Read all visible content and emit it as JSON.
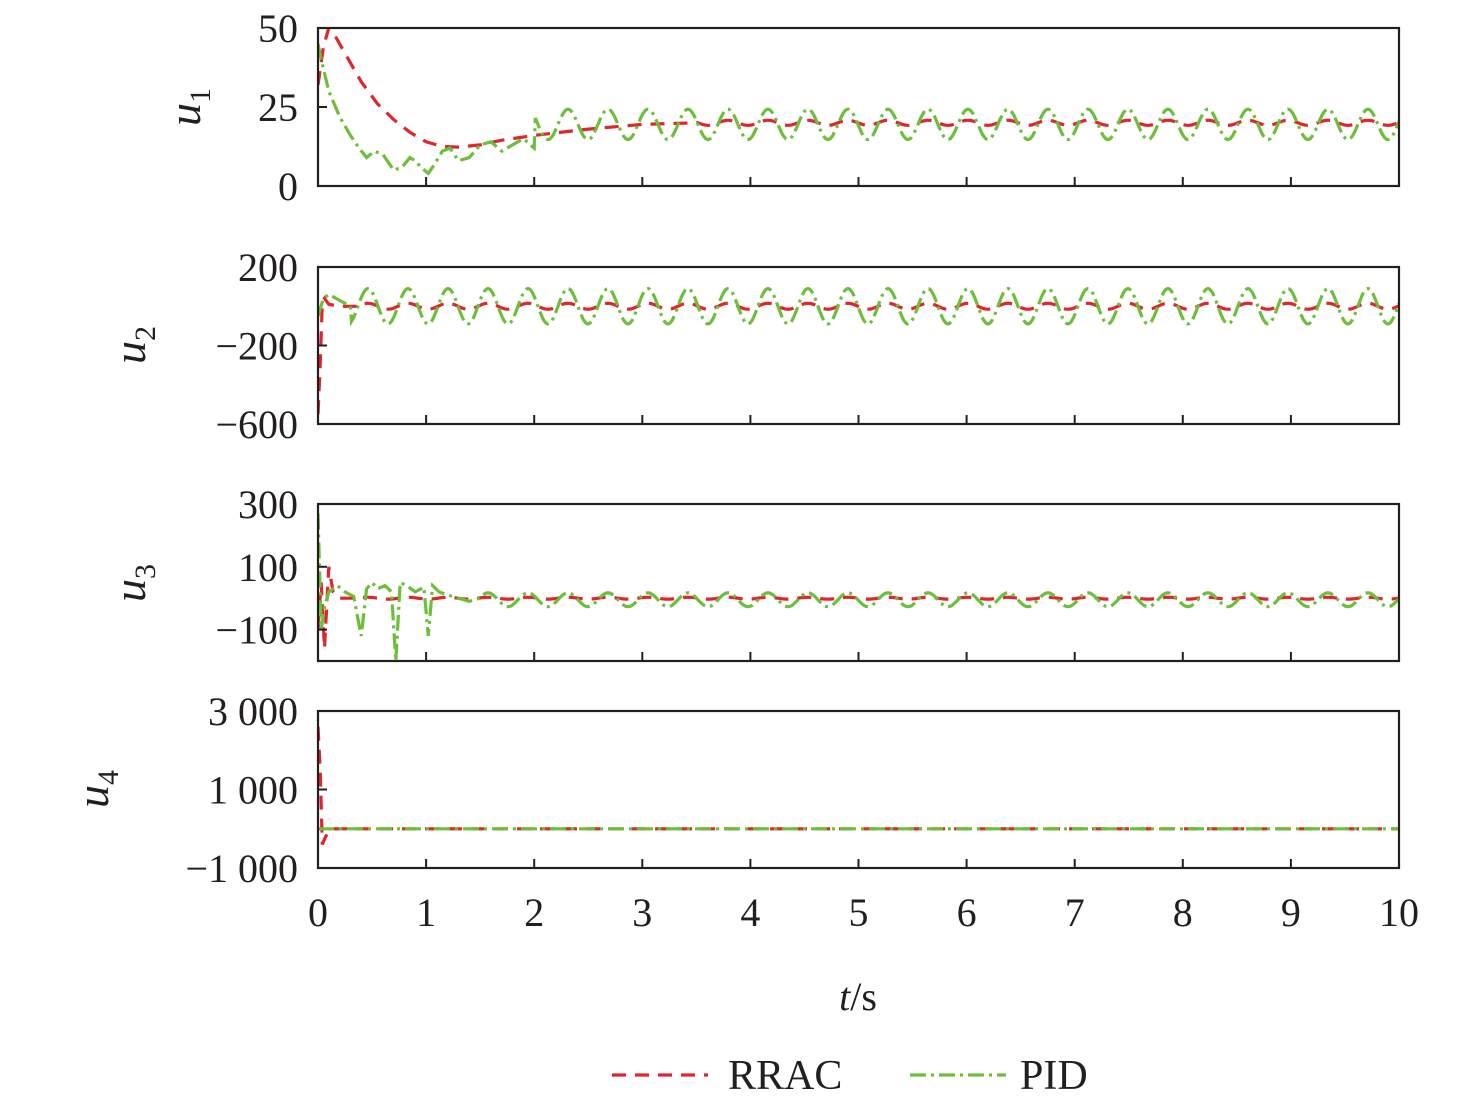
{
  "chart_data": {
    "type": "line",
    "xlabel_var": "t",
    "xlabel_unit": "/s",
    "xlim": [
      0,
      10
    ],
    "xticks": [
      "0",
      "1",
      "2",
      "3",
      "4",
      "5",
      "6",
      "7",
      "8",
      "9",
      "10"
    ],
    "legend": {
      "placement": "bottom-center",
      "entries": [
        {
          "name": "RRAC",
          "color": "#e0252c",
          "style": "dashed"
        },
        {
          "name": "PID",
          "color": "#6cbf3a",
          "style": "dash-dot"
        }
      ]
    },
    "subplots": [
      {
        "ylabel_var": "u",
        "ylabel_sub": "1",
        "ylim": [
          0,
          50
        ],
        "yticks": [
          {
            "value": 0,
            "label": "0"
          },
          {
            "value": 25,
            "label": "25"
          },
          {
            "value": 50,
            "label": "50"
          }
        ],
        "series": [
          {
            "name": "RRAC",
            "steady": 20,
            "osc_amp": 0.8,
            "osc_period": 0.37,
            "points": [
              [
                0,
                32
              ],
              [
                0.05,
                44
              ],
              [
                0.1,
                50
              ],
              [
                0.15,
                48
              ],
              [
                0.25,
                42
              ],
              [
                0.4,
                33
              ],
              [
                0.55,
                26
              ],
              [
                0.7,
                21
              ],
              [
                0.85,
                17
              ],
              [
                1.0,
                14
              ],
              [
                1.15,
                12.5
              ],
              [
                1.3,
                12.3
              ],
              [
                1.5,
                13
              ],
              [
                1.7,
                14.5
              ],
              [
                2.0,
                16
              ],
              [
                2.5,
                18
              ],
              [
                3.0,
                19.5
              ],
              [
                3.5,
                20
              ]
            ]
          },
          {
            "name": "PID",
            "steady": 19.5,
            "osc_amp": 4.8,
            "osc_period": 0.37,
            "points": [
              [
                0,
                45
              ],
              [
                0.03,
                40
              ],
              [
                0.1,
                30
              ],
              [
                0.2,
                22
              ],
              [
                0.3,
                16
              ],
              [
                0.38,
                12
              ],
              [
                0.45,
                9
              ],
              [
                0.52,
                11
              ],
              [
                0.6,
                10
              ],
              [
                0.7,
                5
              ],
              [
                0.78,
                6
              ],
              [
                0.85,
                9
              ],
              [
                0.9,
                8
              ],
              [
                0.95,
                6
              ],
              [
                1.02,
                4
              ],
              [
                1.08,
                7
              ],
              [
                1.15,
                11
              ],
              [
                1.22,
                12
              ],
              [
                1.3,
                8
              ],
              [
                1.4,
                9
              ],
              [
                1.5,
                13
              ],
              [
                1.6,
                14
              ],
              [
                1.7,
                11
              ],
              [
                1.8,
                13
              ],
              [
                1.9,
                15
              ],
              [
                2.0,
                12
              ]
            ]
          }
        ]
      },
      {
        "ylabel_var": "u",
        "ylabel_sub": "2",
        "ylim": [
          -600,
          200
        ],
        "yticks": [
          {
            "value": 200,
            "label": "200"
          },
          {
            "value": -200,
            "label": "−200"
          },
          {
            "value": -600,
            "label": "−600"
          }
        ],
        "series": [
          {
            "name": "RRAC",
            "steady": 0,
            "osc_amp": 15,
            "osc_period": 0.37,
            "points": [
              [
                0,
                -550
              ],
              [
                0.02,
                -300
              ],
              [
                0.04,
                20
              ],
              [
                0.06,
                40
              ],
              [
                0.1,
                10
              ],
              [
                0.2,
                0
              ],
              [
                0.4,
                0
              ]
            ]
          },
          {
            "name": "PID",
            "steady": 0,
            "osc_amp": 90,
            "osc_period": 0.37,
            "points": [
              [
                0,
                -50
              ],
              [
                0.05,
                40
              ],
              [
                0.1,
                60
              ],
              [
                0.2,
                30
              ],
              [
                0.3,
                0
              ]
            ]
          }
        ]
      },
      {
        "ylabel_var": "u",
        "ylabel_sub": "3",
        "ylim": [
          -200,
          300
        ],
        "yticks": [
          {
            "value": 300,
            "label": "300"
          },
          {
            "value": 100,
            "label": "100"
          },
          {
            "value": -100,
            "label": "−100"
          }
        ],
        "series": [
          {
            "name": "RRAC",
            "steady": 0,
            "osc_amp": 3,
            "osc_period": 0.37,
            "points": [
              [
                0,
                -100
              ],
              [
                0.03,
                50
              ],
              [
                0.06,
                -160
              ],
              [
                0.1,
                100
              ],
              [
                0.14,
                20
              ],
              [
                0.2,
                0
              ],
              [
                0.4,
                0
              ]
            ]
          },
          {
            "name": "PID",
            "steady": -5,
            "osc_amp": 22,
            "osc_period": 0.37,
            "points": [
              [
                0,
                270
              ],
              [
                0.03,
                -100
              ],
              [
                0.06,
                -30
              ],
              [
                0.1,
                20
              ],
              [
                0.18,
                40
              ],
              [
                0.25,
                20
              ],
              [
                0.33,
                5
              ],
              [
                0.4,
                -120
              ],
              [
                0.45,
                30
              ],
              [
                0.5,
                50
              ],
              [
                0.55,
                30
              ],
              [
                0.62,
                40
              ],
              [
                0.68,
                20
              ],
              [
                0.72,
                -200
              ],
              [
                0.76,
                50
              ],
              [
                0.82,
                40
              ],
              [
                0.9,
                20
              ],
              [
                0.98,
                35
              ],
              [
                1.02,
                -120
              ],
              [
                1.06,
                40
              ],
              [
                1.12,
                20
              ],
              [
                1.2,
                10
              ],
              [
                1.3,
                0
              ],
              [
                1.4,
                -10
              ],
              [
                1.5,
                0
              ]
            ]
          }
        ]
      },
      {
        "ylabel_var": "u",
        "ylabel_sub": "4",
        "ylim": [
          -1000,
          3000
        ],
        "yticks": [
          {
            "value": 3000,
            "label": "3 000"
          },
          {
            "value": 1000,
            "label": "1 000"
          },
          {
            "value": -1000,
            "label": "−1 000"
          }
        ],
        "series": [
          {
            "name": "RRAC",
            "steady": 0,
            "osc_amp": 0,
            "osc_period": 0.37,
            "points": [
              [
                0,
                2600
              ],
              [
                0.02,
                1500
              ],
              [
                0.04,
                -400
              ],
              [
                0.07,
                -200
              ],
              [
                0.12,
                0
              ],
              [
                0.3,
                0
              ]
            ]
          },
          {
            "name": "PID",
            "steady": 0,
            "osc_amp": 0,
            "osc_period": 0.37,
            "points": [
              [
                0,
                0
              ],
              [
                0.3,
                0
              ]
            ]
          }
        ]
      }
    ]
  }
}
